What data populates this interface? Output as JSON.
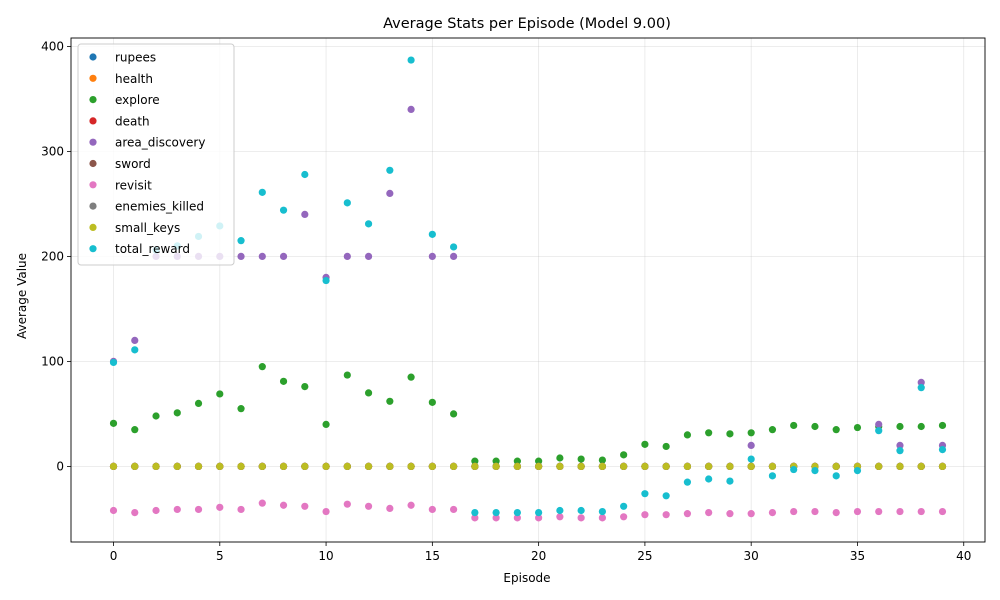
{
  "chart_data": {
    "type": "scatter",
    "title": "Average Stats per Episode (Model 9.00)",
    "xlabel": "Episode",
    "ylabel": "Average Value",
    "xlim": [
      -2,
      41
    ],
    "ylim": [
      -72,
      408
    ],
    "xticks": [
      0,
      5,
      10,
      15,
      20,
      25,
      30,
      35,
      40
    ],
    "yticks": [
      0,
      100,
      200,
      300,
      400
    ],
    "grid": true,
    "legend_position": "top-left",
    "series": [
      {
        "name": "rupees",
        "color": "#1f77b4",
        "x": [
          0,
          1,
          2,
          3,
          4,
          5,
          6,
          7,
          8,
          9,
          10,
          11,
          12,
          13,
          14,
          15,
          16,
          17,
          18,
          19,
          20,
          21,
          22,
          23,
          24,
          25,
          26,
          27,
          28,
          29,
          30,
          31,
          32,
          33,
          34,
          35,
          36,
          37,
          38,
          39
        ],
        "y": [
          0,
          0,
          0,
          0,
          0,
          0,
          0,
          0,
          0,
          0,
          0,
          0,
          0,
          0,
          0,
          0,
          0,
          0,
          0,
          0,
          0,
          0,
          0,
          0,
          0,
          0,
          0,
          0,
          0,
          0,
          0,
          0,
          0,
          0,
          0,
          0,
          0,
          0,
          0,
          0
        ]
      },
      {
        "name": "health",
        "color": "#ff7f0e",
        "x": [
          0,
          1,
          2,
          3,
          4,
          5,
          6,
          7,
          8,
          9,
          10,
          11,
          12,
          13,
          14,
          15,
          16,
          17,
          18,
          19,
          20,
          21,
          22,
          23,
          24,
          25,
          26,
          27,
          28,
          29,
          30,
          31,
          32,
          33,
          34,
          35,
          36,
          37,
          38,
          39
        ],
        "y": [
          0,
          0,
          0,
          0,
          0,
          0,
          0,
          0,
          0,
          0,
          0,
          0,
          0,
          0,
          0,
          0,
          0,
          0,
          0,
          0,
          0,
          0,
          0,
          0,
          0,
          0,
          0,
          0,
          0,
          0,
          0,
          0,
          0,
          0,
          0,
          0,
          0,
          0,
          0,
          0
        ]
      },
      {
        "name": "explore",
        "color": "#2ca02c",
        "x": [
          0,
          1,
          2,
          3,
          4,
          5,
          6,
          7,
          8,
          9,
          10,
          11,
          12,
          13,
          14,
          15,
          16,
          17,
          18,
          19,
          20,
          21,
          22,
          23,
          24,
          25,
          26,
          27,
          28,
          29,
          30,
          31,
          32,
          33,
          34,
          35,
          36,
          37,
          38,
          39
        ],
        "y": [
          41,
          35,
          48,
          51,
          60,
          69,
          55,
          95,
          81,
          76,
          40,
          87,
          70,
          62,
          85,
          61,
          50,
          5,
          5,
          5,
          5,
          8,
          7,
          6,
          11,
          21,
          19,
          30,
          32,
          31,
          32,
          35,
          39,
          38,
          35,
          37,
          38,
          38,
          38,
          39
        ]
      },
      {
        "name": "death",
        "color": "#d62728",
        "x": [
          0,
          1,
          2,
          3,
          4,
          5,
          6,
          7,
          8,
          9,
          10,
          11,
          12,
          13,
          14,
          15,
          16,
          17,
          18,
          19,
          20,
          21,
          22,
          23,
          24,
          25,
          26,
          27,
          28,
          29,
          30,
          31,
          32,
          33,
          34,
          35,
          36,
          37,
          38,
          39
        ],
        "y": [
          0,
          0,
          0,
          0,
          0,
          0,
          0,
          0,
          0,
          0,
          0,
          0,
          0,
          0,
          0,
          0,
          0,
          0,
          0,
          0,
          0,
          0,
          0,
          0,
          0,
          0,
          0,
          0,
          0,
          0,
          0,
          0,
          0,
          0,
          0,
          0,
          0,
          0,
          0,
          0
        ]
      },
      {
        "name": "area_discovery",
        "color": "#9467bd",
        "x": [
          0,
          1,
          2,
          3,
          4,
          5,
          6,
          7,
          8,
          9,
          10,
          11,
          12,
          13,
          14,
          15,
          16,
          17,
          18,
          19,
          20,
          21,
          22,
          23,
          24,
          25,
          26,
          27,
          28,
          29,
          30,
          31,
          32,
          33,
          34,
          35,
          36,
          37,
          38,
          39
        ],
        "y": [
          100,
          120,
          200,
          200,
          200,
          200,
          200,
          200,
          200,
          240,
          180,
          200,
          200,
          260,
          340,
          200,
          200,
          0,
          0,
          0,
          0,
          0,
          0,
          0,
          0,
          0,
          0,
          0,
          0,
          0,
          20,
          0,
          0,
          0,
          0,
          0,
          40,
          20,
          80,
          20
        ]
      },
      {
        "name": "sword",
        "color": "#8c564b",
        "x": [
          0,
          1,
          2,
          3,
          4,
          5,
          6,
          7,
          8,
          9,
          10,
          11,
          12,
          13,
          14,
          15,
          16,
          17,
          18,
          19,
          20,
          21,
          22,
          23,
          24,
          25,
          26,
          27,
          28,
          29,
          30,
          31,
          32,
          33,
          34,
          35,
          36,
          37,
          38,
          39
        ],
        "y": [
          0,
          0,
          0,
          0,
          0,
          0,
          0,
          0,
          0,
          0,
          0,
          0,
          0,
          0,
          0,
          0,
          0,
          0,
          0,
          0,
          0,
          0,
          0,
          0,
          0,
          0,
          0,
          0,
          0,
          0,
          0,
          0,
          0,
          0,
          0,
          0,
          0,
          0,
          0,
          0
        ]
      },
      {
        "name": "revisit",
        "color": "#e377c2",
        "x": [
          0,
          1,
          2,
          3,
          4,
          5,
          6,
          7,
          8,
          9,
          10,
          11,
          12,
          13,
          14,
          15,
          16,
          17,
          18,
          19,
          20,
          21,
          22,
          23,
          24,
          25,
          26,
          27,
          28,
          29,
          30,
          31,
          32,
          33,
          34,
          35,
          36,
          37,
          38,
          39
        ],
        "y": [
          -42,
          -44,
          -42,
          -41,
          -41,
          -39,
          -41,
          -35,
          -37,
          -38,
          -43,
          -36,
          -38,
          -40,
          -37,
          -41,
          -41,
          -49,
          -49,
          -49,
          -49,
          -48,
          -49,
          -49,
          -48,
          -46,
          -46,
          -45,
          -44,
          -45,
          -45,
          -44,
          -43,
          -43,
          -44,
          -43,
          -43,
          -43,
          -43,
          -43
        ]
      },
      {
        "name": "enemies_killed",
        "color": "#7f7f7f",
        "x": [
          0,
          1,
          2,
          3,
          4,
          5,
          6,
          7,
          8,
          9,
          10,
          11,
          12,
          13,
          14,
          15,
          16,
          17,
          18,
          19,
          20,
          21,
          22,
          23,
          24,
          25,
          26,
          27,
          28,
          29,
          30,
          31,
          32,
          33,
          34,
          35,
          36,
          37,
          38,
          39
        ],
        "y": [
          0,
          0,
          0,
          0,
          0,
          0,
          0,
          0,
          0,
          0,
          0,
          0,
          0,
          0,
          0,
          0,
          0,
          0,
          0,
          0,
          0,
          0,
          0,
          0,
          0,
          0,
          0,
          0,
          0,
          0,
          0,
          0,
          0,
          0,
          0,
          0,
          0,
          0,
          0,
          0
        ]
      },
      {
        "name": "small_keys",
        "color": "#bcbd22",
        "x": [
          0,
          1,
          2,
          3,
          4,
          5,
          6,
          7,
          8,
          9,
          10,
          11,
          12,
          13,
          14,
          15,
          16,
          17,
          18,
          19,
          20,
          21,
          22,
          23,
          24,
          25,
          26,
          27,
          28,
          29,
          30,
          31,
          32,
          33,
          34,
          35,
          36,
          37,
          38,
          39
        ],
        "y": [
          0,
          0,
          0,
          0,
          0,
          0,
          0,
          0,
          0,
          0,
          0,
          0,
          0,
          0,
          0,
          0,
          0,
          0,
          0,
          0,
          0,
          0,
          0,
          0,
          0,
          0,
          0,
          0,
          0,
          0,
          0,
          0,
          0,
          0,
          0,
          0,
          0,
          0,
          0,
          0
        ]
      },
      {
        "name": "total_reward",
        "color": "#17becf",
        "x": [
          0,
          1,
          2,
          3,
          4,
          5,
          6,
          7,
          8,
          9,
          10,
          11,
          12,
          13,
          14,
          15,
          16,
          17,
          18,
          19,
          20,
          21,
          22,
          23,
          24,
          25,
          26,
          27,
          28,
          29,
          30,
          31,
          32,
          33,
          34,
          35,
          36,
          37,
          38,
          39
        ],
        "y": [
          99,
          111,
          206,
          210,
          219,
          229,
          215,
          261,
          244,
          278,
          177,
          251,
          231,
          282,
          387,
          221,
          209,
          -44,
          -44,
          -44,
          -44,
          -42,
          -42,
          -43,
          -38,
          -26,
          -28,
          -15,
          -12,
          -14,
          7,
          -9,
          -3,
          -4,
          -9,
          -4,
          34,
          15,
          75,
          16
        ]
      }
    ]
  }
}
